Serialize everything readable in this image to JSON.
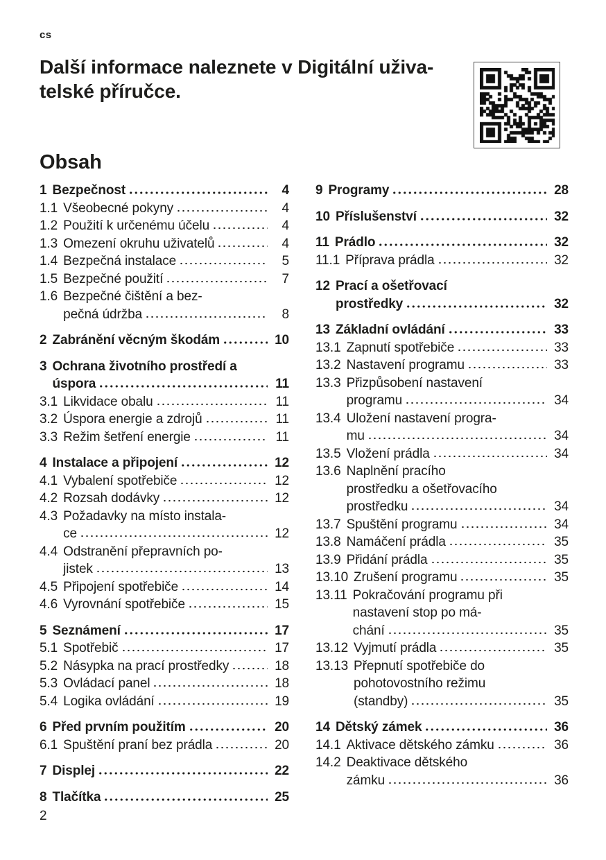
{
  "colors": {
    "text": "#1d1d1b",
    "background": "#ffffff",
    "qr": "#111111"
  },
  "lang_tag": "cs",
  "heading": {
    "lines": [
      "Další informace naleznete v Digitální uživa-",
      "telské příručce."
    ]
  },
  "qr": {
    "alt": "qr-code"
  },
  "toc_title": "Obsah",
  "footer_page_number": "2",
  "toc": {
    "left": [
      {
        "num": "1",
        "lines": [
          "Bezpečnost"
        ],
        "page": "4",
        "bold": true
      },
      {
        "num": "1.1",
        "lines": [
          "Všeobecné pokyny"
        ],
        "page": "4",
        "bold": false
      },
      {
        "num": "1.2",
        "lines": [
          "Použití k určenému účelu"
        ],
        "page": "4",
        "bold": false
      },
      {
        "num": "1.3",
        "lines": [
          "Omezení okruhu uživatelů"
        ],
        "page": "4",
        "bold": false
      },
      {
        "num": "1.4",
        "lines": [
          "Bezpečná instalace"
        ],
        "page": "5",
        "bold": false
      },
      {
        "num": "1.5",
        "lines": [
          "Bezpečné použití"
        ],
        "page": "7",
        "bold": false
      },
      {
        "num": "1.6",
        "lines": [
          "Bezpečné čištění a bez-",
          "pečná údržba"
        ],
        "page": "8",
        "bold": false
      },
      {
        "num": "2",
        "lines": [
          "Zabránění věcným škodám"
        ],
        "page": "10",
        "bold": true
      },
      {
        "num": "3",
        "lines": [
          "Ochrana životního prostředí a",
          "úspora"
        ],
        "page": "11",
        "bold": true
      },
      {
        "num": "3.1",
        "lines": [
          "Likvidace obalu"
        ],
        "page": "11",
        "bold": false
      },
      {
        "num": "3.2",
        "lines": [
          "Úspora energie a zdrojů"
        ],
        "page": "11",
        "bold": false
      },
      {
        "num": "3.3",
        "lines": [
          "Režim šetření energie"
        ],
        "page": "11",
        "bold": false
      },
      {
        "num": "4",
        "lines": [
          "Instalace a připojení"
        ],
        "page": "12",
        "bold": true
      },
      {
        "num": "4.1",
        "lines": [
          "Vybalení spotřebiče"
        ],
        "page": "12",
        "bold": false
      },
      {
        "num": "4.2",
        "lines": [
          "Rozsah dodávky"
        ],
        "page": "12",
        "bold": false
      },
      {
        "num": "4.3",
        "lines": [
          "Požadavky na místo instala-",
          "ce"
        ],
        "page": "12",
        "bold": false
      },
      {
        "num": "4.4",
        "lines": [
          "Odstranění přepravních po-",
          "jistek"
        ],
        "page": "13",
        "bold": false
      },
      {
        "num": "4.5",
        "lines": [
          "Připojení spotřebiče"
        ],
        "page": "14",
        "bold": false
      },
      {
        "num": "4.6",
        "lines": [
          "Vyrovnání spotřebiče"
        ],
        "page": "15",
        "bold": false
      },
      {
        "num": "5",
        "lines": [
          "Seznámení"
        ],
        "page": "17",
        "bold": true
      },
      {
        "num": "5.1",
        "lines": [
          "Spotřebič"
        ],
        "page": "17",
        "bold": false
      },
      {
        "num": "5.2",
        "lines": [
          "Násypka na prací prostředky"
        ],
        "page": "18",
        "bold": false
      },
      {
        "num": "5.3",
        "lines": [
          "Ovládací panel"
        ],
        "page": "18",
        "bold": false
      },
      {
        "num": "5.4",
        "lines": [
          "Logika ovládání"
        ],
        "page": "19",
        "bold": false
      },
      {
        "num": "6",
        "lines": [
          "Před prvním použitím"
        ],
        "page": "20",
        "bold": true
      },
      {
        "num": "6.1",
        "lines": [
          "Spuštění praní bez prádla"
        ],
        "page": "20",
        "bold": false
      },
      {
        "num": "7",
        "lines": [
          "Displej"
        ],
        "page": "22",
        "bold": true
      },
      {
        "num": "8",
        "lines": [
          "Tlačítka"
        ],
        "page": "25",
        "bold": true
      }
    ],
    "right": [
      {
        "num": "9",
        "lines": [
          "Programy"
        ],
        "page": "28",
        "bold": true
      },
      {
        "num": "10",
        "lines": [
          "Příslušenství"
        ],
        "page": "32",
        "bold": true
      },
      {
        "num": "11",
        "lines": [
          "Prádlo"
        ],
        "page": "32",
        "bold": true
      },
      {
        "num": "11.1",
        "lines": [
          "Příprava prádla"
        ],
        "page": "32",
        "bold": false
      },
      {
        "num": "12",
        "lines": [
          "Prací a ošetřovací",
          "prostředky"
        ],
        "page": "32",
        "bold": true
      },
      {
        "num": "13",
        "lines": [
          "Základní ovládání"
        ],
        "page": "33",
        "bold": true
      },
      {
        "num": "13.1",
        "lines": [
          "Zapnutí spotřebiče"
        ],
        "page": "33",
        "bold": false
      },
      {
        "num": "13.2",
        "lines": [
          "Nastavení programu"
        ],
        "page": "33",
        "bold": false
      },
      {
        "num": "13.3",
        "lines": [
          "Přizpůsobení nastavení",
          "programu"
        ],
        "page": "34",
        "bold": false
      },
      {
        "num": "13.4",
        "lines": [
          "Uložení nastavení progra-",
          "mu"
        ],
        "page": "34",
        "bold": false
      },
      {
        "num": "13.5",
        "lines": [
          "Vložení prádla"
        ],
        "page": "34",
        "bold": false
      },
      {
        "num": "13.6",
        "lines": [
          "Naplnění pracího",
          "prostředku a ošetřovacího",
          "prostředku"
        ],
        "page": "34",
        "bold": false
      },
      {
        "num": "13.7",
        "lines": [
          "Spuštění programu"
        ],
        "page": "34",
        "bold": false
      },
      {
        "num": "13.8",
        "lines": [
          "Namáčení prádla"
        ],
        "page": "35",
        "bold": false
      },
      {
        "num": "13.9",
        "lines": [
          "Přidání prádla"
        ],
        "page": "35",
        "bold": false
      },
      {
        "num": "13.10",
        "lines": [
          "Zrušení programu"
        ],
        "page": "35",
        "bold": false
      },
      {
        "num": "13.11",
        "lines": [
          "Pokračování programu při",
          "nastavení stop po má-",
          "chání"
        ],
        "page": "35",
        "bold": false
      },
      {
        "num": "13.12",
        "lines": [
          "Vyjmutí prádla"
        ],
        "page": "35",
        "bold": false
      },
      {
        "num": "13.13",
        "lines": [
          "Přepnutí spotřebiče do",
          "pohotovostního režimu",
          "(standby)"
        ],
        "page": "35",
        "bold": false
      },
      {
        "num": "14",
        "lines": [
          "Dětský zámek"
        ],
        "page": "36",
        "bold": true
      },
      {
        "num": "14.1",
        "lines": [
          "Aktivace dětského zámku"
        ],
        "page": "36",
        "bold": false
      },
      {
        "num": "14.2",
        "lines": [
          "Deaktivace dětského",
          "zámku"
        ],
        "page": "36",
        "bold": false
      }
    ]
  }
}
